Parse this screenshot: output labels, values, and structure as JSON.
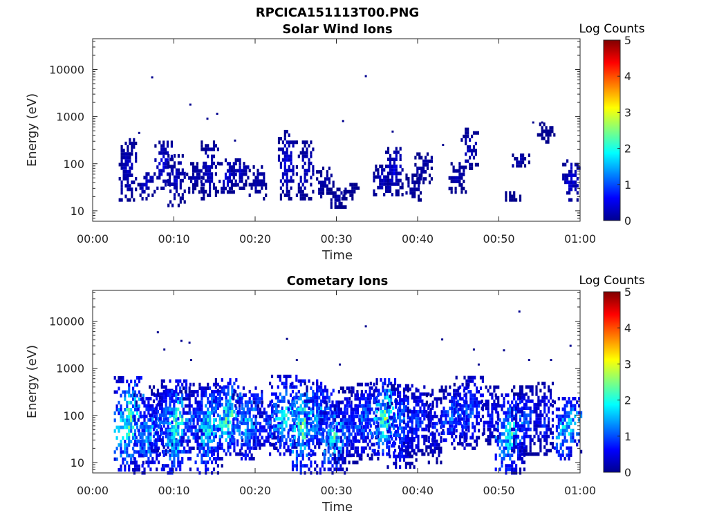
{
  "figure_title": "RPCICA151113T00.PNG",
  "chart_data": [
    {
      "type": "heatmap",
      "title": "Solar Wind Ions",
      "xlabel": "Time",
      "ylabel": "Energy (eV)",
      "xlim": [
        "00:00",
        "01:00"
      ],
      "x_ticks": [
        "00:00",
        "00:10",
        "00:20",
        "00:30",
        "00:40",
        "00:50",
        "01:00"
      ],
      "ylim": [
        6,
        45000
      ],
      "yscale": "log",
      "y_ticks": [
        "10",
        "100",
        "1000",
        "10000"
      ],
      "colorbar": {
        "label": "Log Counts",
        "range": [
          0,
          5
        ],
        "ticks": [
          "0",
          "1",
          "2",
          "3",
          "4",
          "5"
        ],
        "colormap": "jet"
      },
      "bursts": [
        {
          "t": 4.2,
          "lo": 17,
          "hi": 340,
          "v": 0.3
        },
        {
          "t": 6.5,
          "lo": 18,
          "hi": 70,
          "v": 0.3
        },
        {
          "t": 8.6,
          "lo": 30,
          "hi": 320,
          "v": 0.4
        },
        {
          "t": 10.2,
          "lo": 13,
          "hi": 150,
          "v": 0.3
        },
        {
          "t": 12.5,
          "lo": 25,
          "hi": 100,
          "v": 0.2
        },
        {
          "t": 14.3,
          "lo": 18,
          "hi": 300,
          "v": 0.3
        },
        {
          "t": 16.5,
          "lo": 25,
          "hi": 120,
          "v": 0.4
        },
        {
          "t": 18.0,
          "lo": 30,
          "hi": 140,
          "v": 0.3
        },
        {
          "t": 20.2,
          "lo": 18,
          "hi": 90,
          "v": 0.2
        },
        {
          "t": 23.8,
          "lo": 18,
          "hi": 500,
          "v": 0.4
        },
        {
          "t": 26.0,
          "lo": 18,
          "hi": 300,
          "v": 0.3
        },
        {
          "t": 28.5,
          "lo": 20,
          "hi": 80,
          "v": 0.2
        },
        {
          "t": 30.0,
          "lo": 12,
          "hi": 30,
          "v": 0.2
        },
        {
          "t": 31.6,
          "lo": 18,
          "hi": 40,
          "v": 0.1
        },
        {
          "t": 35.5,
          "lo": 22,
          "hi": 100,
          "v": 0.3
        },
        {
          "t": 37.0,
          "lo": 22,
          "hi": 220,
          "v": 0.4
        },
        {
          "t": 39.5,
          "lo": 17,
          "hi": 60,
          "v": 0.2
        },
        {
          "t": 40.6,
          "lo": 40,
          "hi": 160,
          "v": 0.2
        },
        {
          "t": 44.8,
          "lo": 25,
          "hi": 110,
          "v": 0.2
        },
        {
          "t": 46.3,
          "lo": 80,
          "hi": 550,
          "v": 0.3
        },
        {
          "t": 51.5,
          "lo": 17,
          "hi": 25,
          "v": 0.1
        },
        {
          "t": 52.6,
          "lo": 90,
          "hi": 160,
          "v": 0.2
        },
        {
          "t": 55.7,
          "lo": 290,
          "hi": 800,
          "v": 0.1
        },
        {
          "t": 58.8,
          "lo": 17,
          "hi": 120,
          "v": 0.4
        }
      ],
      "specks": [
        [
          7.2,
          6800
        ],
        [
          11.9,
          1800
        ],
        [
          15.2,
          1150
        ],
        [
          14.0,
          900
        ],
        [
          33.5,
          7200
        ],
        [
          30.7,
          800
        ],
        [
          54.1,
          750
        ],
        [
          55.2,
          750
        ],
        [
          5.6,
          450
        ],
        [
          17.4,
          310
        ],
        [
          36.8,
          480
        ],
        [
          43.0,
          250
        ]
      ]
    },
    {
      "type": "heatmap",
      "title": "Cometary Ions",
      "xlabel": "Time",
      "ylabel": "Energy (eV)",
      "xlim": [
        "00:00",
        "01:00"
      ],
      "x_ticks": [
        "00:00",
        "00:10",
        "00:20",
        "00:30",
        "00:40",
        "00:50",
        "01:00"
      ],
      "ylim": [
        6,
        45000
      ],
      "yscale": "log",
      "y_ticks": [
        "10",
        "100",
        "1000",
        "10000"
      ],
      "colorbar": {
        "label": "Log Counts",
        "range": [
          0,
          5
        ],
        "ticks": [
          "0",
          "1",
          "2",
          "3",
          "4",
          "5"
        ],
        "colormap": "jet"
      },
      "bursts": [
        {
          "t": 4.4,
          "lo": 7,
          "hi": 700,
          "v": 1.9
        },
        {
          "t": 6.8,
          "lo": 6,
          "hi": 300,
          "v": 1.3
        },
        {
          "t": 8.7,
          "lo": 15,
          "hi": 400,
          "v": 1.0
        },
        {
          "t": 10.2,
          "lo": 6,
          "hi": 600,
          "v": 1.8
        },
        {
          "t": 12.6,
          "lo": 20,
          "hi": 400,
          "v": 0.9
        },
        {
          "t": 14.1,
          "lo": 6,
          "hi": 500,
          "v": 1.5
        },
        {
          "t": 16.6,
          "lo": 15,
          "hi": 600,
          "v": 1.8
        },
        {
          "t": 19.0,
          "lo": 12,
          "hi": 400,
          "v": 1.4
        },
        {
          "t": 21.3,
          "lo": 20,
          "hi": 200,
          "v": 0.8
        },
        {
          "t": 23.5,
          "lo": 15,
          "hi": 700,
          "v": 1.5
        },
        {
          "t": 25.8,
          "lo": 6,
          "hi": 600,
          "v": 1.9
        },
        {
          "t": 27.8,
          "lo": 15,
          "hi": 550,
          "v": 1.2
        },
        {
          "t": 29.7,
          "lo": 6,
          "hi": 200,
          "v": 1.6
        },
        {
          "t": 31.5,
          "lo": 10,
          "hi": 400,
          "v": 0.8
        },
        {
          "t": 33.3,
          "lo": 12,
          "hi": 500,
          "v": 1.0
        },
        {
          "t": 35.9,
          "lo": 15,
          "hi": 600,
          "v": 1.9
        },
        {
          "t": 38.0,
          "lo": 8,
          "hi": 500,
          "v": 1.0
        },
        {
          "t": 40.0,
          "lo": 15,
          "hi": 400,
          "v": 0.8
        },
        {
          "t": 42.0,
          "lo": 10,
          "hi": 300,
          "v": 0.6
        },
        {
          "t": 44.4,
          "lo": 25,
          "hi": 400,
          "v": 1.1
        },
        {
          "t": 46.2,
          "lo": 20,
          "hi": 700,
          "v": 0.9
        },
        {
          "t": 48.8,
          "lo": 25,
          "hi": 400,
          "v": 0.6
        },
        {
          "t": 51.3,
          "lo": 6,
          "hi": 300,
          "v": 1.6
        },
        {
          "t": 53.3,
          "lo": 15,
          "hi": 400,
          "v": 0.8
        },
        {
          "t": 55.5,
          "lo": 15,
          "hi": 500,
          "v": 0.7
        },
        {
          "t": 58.3,
          "lo": 12,
          "hi": 250,
          "v": 1.5
        }
      ],
      "specks": [
        [
          7.9,
          5800
        ],
        [
          8.7,
          2500
        ],
        [
          10.8,
          3800
        ],
        [
          11.8,
          3500
        ],
        [
          23.8,
          4200
        ],
        [
          33.5,
          7800
        ],
        [
          42.9,
          4100
        ],
        [
          52.4,
          16000
        ],
        [
          58.7,
          3000
        ],
        [
          46.8,
          2500
        ],
        [
          47.4,
          1200
        ],
        [
          50.5,
          2400
        ],
        [
          53.6,
          1500
        ],
        [
          56.3,
          1500
        ],
        [
          12.0,
          1500
        ],
        [
          30.3,
          1200
        ],
        [
          25.0,
          1500
        ]
      ]
    }
  ]
}
